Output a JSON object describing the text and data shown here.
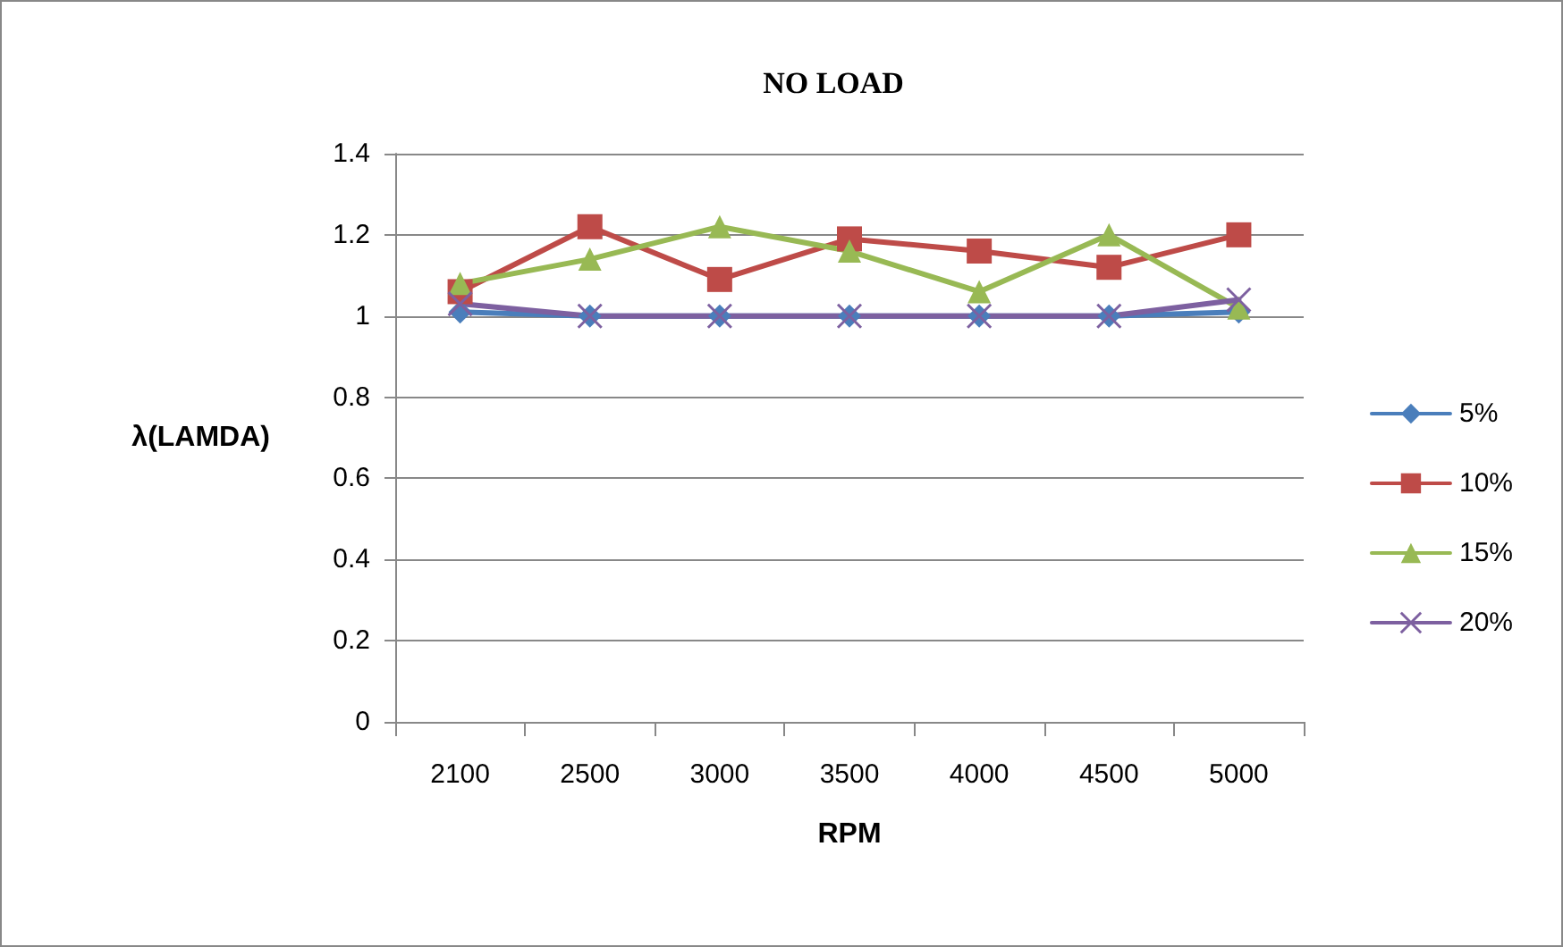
{
  "chart_data": {
    "type": "line",
    "title": "NO LOAD",
    "xlabel": "RPM",
    "ylabel": "λ(LAMDA)",
    "categories": [
      "2100",
      "2500",
      "3000",
      "3500",
      "4000",
      "4500",
      "5000"
    ],
    "series": [
      {
        "name": "5%",
        "color": "#4a7ebb",
        "marker": "diamond",
        "values": [
          1.01,
          1,
          1,
          1,
          1,
          1,
          1.01
        ]
      },
      {
        "name": "10%",
        "color": "#be4b48",
        "marker": "square",
        "values": [
          1.06,
          1.22,
          1.09,
          1.19,
          1.16,
          1.12,
          1.2
        ]
      },
      {
        "name": "15%",
        "color": "#98b954",
        "marker": "triangle",
        "values": [
          1.08,
          1.14,
          1.22,
          1.16,
          1.06,
          1.2,
          1.02
        ]
      },
      {
        "name": "20%",
        "color": "#7d60a0",
        "marker": "cross",
        "values": [
          1.03,
          1,
          1,
          1,
          1,
          1,
          1.04
        ]
      }
    ],
    "ylim": [
      0,
      1.4
    ],
    "yticks": [
      0,
      0.2,
      0.4,
      0.6,
      0.8,
      1,
      1.2,
      1.4
    ],
    "grid": "y",
    "legend": "right"
  }
}
